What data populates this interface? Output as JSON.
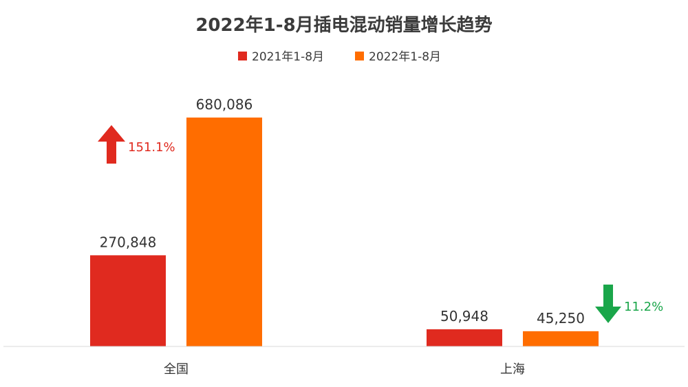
{
  "chart_data": {
    "type": "bar",
    "title": "2022年1-8月插电混动销量增长趋势",
    "categories": [
      "全国",
      "上海"
    ],
    "series": [
      {
        "name": "2021年1-8月",
        "color": "#e02a1f",
        "values": [
          270848,
          50948
        ],
        "labels": [
          "270,848",
          "50,948"
        ]
      },
      {
        "name": "2022年1-8月",
        "color": "#ff6d00",
        "values": [
          680086,
          45250
        ],
        "labels": [
          "680,086",
          "45,250"
        ]
      }
    ],
    "ylim": [
      0,
      680086
    ],
    "legend": "top-center",
    "grid": false,
    "changes": [
      {
        "category": "全国",
        "label": "151.1%",
        "direction": "up",
        "color": "#e02a1f"
      },
      {
        "category": "上海",
        "label": "11.2%",
        "direction": "down",
        "color": "#1aa64a"
      }
    ]
  }
}
